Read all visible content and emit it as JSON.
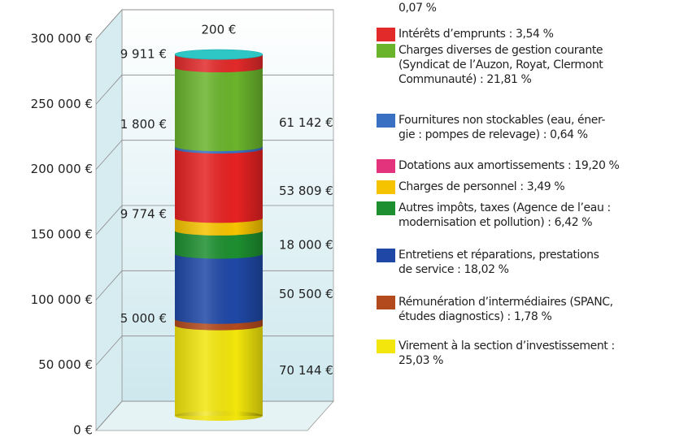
{
  "chart_data": {
    "type": "stacked_cylinder",
    "ylim": [
      0,
      300000
    ],
    "yticks": [
      {
        "value": 0,
        "label": "0 €"
      },
      {
        "value": 50000,
        "label": "50 000 €"
      },
      {
        "value": 100000,
        "label": "100 000 €"
      },
      {
        "value": 150000,
        "label": "150 000 €"
      },
      {
        "value": 200000,
        "label": "200 000 €"
      },
      {
        "value": 250000,
        "label": "250 000 €"
      },
      {
        "value": 300000,
        "label": "300 000 €"
      }
    ],
    "grid": true,
    "series": [
      {
        "name": " Virement à la section d’investissement :\n25,03 %",
        "color": "#f2e60c",
        "values": [
          70144
        ],
        "value_labels": [
          "70 144 €"
        ]
      },
      {
        "name": "Rémunération d’intermédiaires (SPANC,\nétudes diagnostics) : 1,78 %",
        "color": "#b24a1e",
        "values": [
          5000
        ],
        "value_labels": [
          "5 000 €"
        ]
      },
      {
        "name": "Entretiens et réparations, prestations\nde service : 18,02 %",
        "color": "#1f48a6",
        "values": [
          50500
        ],
        "value_labels": [
          "50 500 €"
        ]
      },
      {
        "name": "Autres impôts, taxes (Agence de l’eau :\nmodernisation et pollution) : 6,42 %",
        "color": "#1d8f30",
        "values": [
          18000
        ],
        "value_labels": [
          "18 000 €"
        ]
      },
      {
        "name": "Charges de personnel : 3,49 %",
        "color": "#f6c300",
        "values": [
          9774
        ],
        "value_labels": [
          "9 774 €"
        ]
      },
      {
        "name": "Dotations aux amortissements : 19,20 %",
        "color": "#e62222",
        "legend_color": "#e3337c",
        "values": [
          53809
        ],
        "value_labels": [
          "53 809 €"
        ]
      },
      {
        "name": "Fournitures non stockables (eau, éner-\ngie : pompes de relevage) : 0,64 %",
        "color": "#3a70c2",
        "values": [
          1800
        ],
        "value_labels": [
          "1 800 €"
        ]
      },
      {
        "name": "Charges diverses de gestion courante\n(Syndicat de l’Auzon, Royat, Clermont\nCommunauté) : 21,81 %",
        "color": "#6ab42c",
        "values": [
          61142
        ],
        "value_labels": [
          "61 142 €"
        ]
      },
      {
        "name": "Intérêts d’emprunts : 3,54 %",
        "color": "#e22a2a",
        "values": [
          9911
        ],
        "value_labels": [
          "9 911 €"
        ]
      },
      {
        "name": "0,07 %",
        "color": "#2fc6c6",
        "values": [
          200
        ],
        "value_labels": [
          "200 €"
        ]
      }
    ]
  }
}
